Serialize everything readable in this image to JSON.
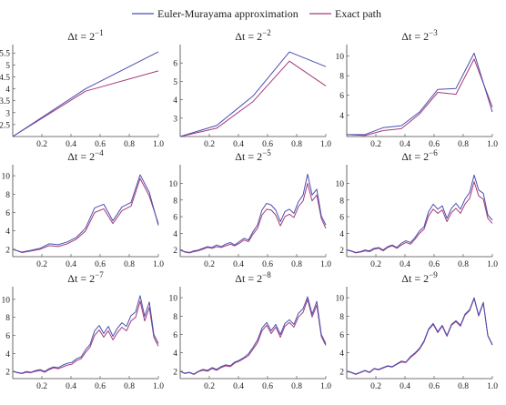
{
  "legend": {
    "items": [
      {
        "label": "Euler-Murayama approximation",
        "color": "#4b4fb0"
      },
      {
        "label": "Exact path",
        "color": "#a43a78"
      }
    ]
  },
  "chart_data": [
    {
      "type": "line",
      "title_base": "Δt = 2",
      "title_exp": "−1",
      "xlim": [
        0,
        1
      ],
      "ylim": [
        2.0,
        5.7
      ],
      "xticks": [
        0.2,
        0.4,
        0.6,
        0.8,
        1.0
      ],
      "yticks": [
        2.5,
        3.0,
        3.5,
        4.0,
        4.5,
        5.0,
        5.5
      ],
      "series": [
        {
          "color": "#4b4fb0",
          "x": [
            0,
            0.5,
            1.0
          ],
          "y": [
            2.0,
            4.0,
            5.55
          ]
        },
        {
          "color": "#a43a78",
          "x": [
            0,
            0.5,
            1.0
          ],
          "y": [
            2.0,
            3.9,
            4.75
          ]
        }
      ]
    },
    {
      "type": "line",
      "title_base": "Δt = 2",
      "title_exp": "−2",
      "xlim": [
        0,
        1
      ],
      "ylim": [
        2.0,
        6.8
      ],
      "xticks": [
        0.2,
        0.4,
        0.6,
        0.8,
        1.0
      ],
      "yticks": [
        3,
        4,
        5,
        6
      ],
      "series": [
        {
          "color": "#4b4fb0",
          "x": [
            0,
            0.25,
            0.5,
            0.75,
            1.0
          ],
          "y": [
            2.0,
            2.6,
            4.2,
            6.6,
            5.8
          ]
        },
        {
          "color": "#a43a78",
          "x": [
            0,
            0.25,
            0.5,
            0.75,
            1.0
          ],
          "y": [
            2.0,
            2.45,
            3.9,
            6.1,
            4.75
          ]
        }
      ]
    },
    {
      "type": "line",
      "title_base": "Δt = 2",
      "title_exp": "−3",
      "xlim": [
        0,
        1
      ],
      "ylim": [
        1.8,
        10.8
      ],
      "xticks": [
        0.2,
        0.4,
        0.6,
        0.8,
        1.0
      ],
      "yticks": [
        4,
        6,
        8,
        10
      ],
      "series": [
        {
          "color": "#4b4fb0",
          "x": [
            0,
            0.125,
            0.25,
            0.375,
            0.5,
            0.625,
            0.75,
            0.875,
            1.0
          ],
          "y": [
            2.0,
            2.0,
            2.7,
            2.9,
            4.3,
            6.6,
            6.7,
            10.3,
            4.3
          ]
        },
        {
          "color": "#a43a78",
          "x": [
            0,
            0.125,
            0.25,
            0.375,
            0.5,
            0.625,
            0.75,
            0.875,
            1.0
          ],
          "y": [
            2.0,
            1.9,
            2.4,
            2.6,
            4.1,
            6.3,
            6.1,
            9.7,
            4.8
          ]
        }
      ]
    },
    {
      "type": "line",
      "title_base": "Δt = 2",
      "title_exp": "−4",
      "xlim": [
        0,
        1
      ],
      "ylim": [
        1.2,
        10.8
      ],
      "xticks": [
        0.2,
        0.4,
        0.6,
        0.8,
        1.0
      ],
      "yticks": [
        2,
        4,
        6,
        8,
        10
      ],
      "series": [
        {
          "color": "#4b4fb0",
          "x": [
            0,
            0.0625,
            0.125,
            0.1875,
            0.25,
            0.3125,
            0.375,
            0.4375,
            0.5,
            0.5625,
            0.625,
            0.6875,
            0.75,
            0.8125,
            0.875,
            0.9375,
            1.0
          ],
          "y": [
            2.0,
            1.7,
            1.9,
            2.1,
            2.6,
            2.5,
            2.8,
            3.3,
            4.3,
            6.5,
            6.9,
            5.1,
            6.6,
            7.1,
            10.1,
            8.2,
            4.6
          ]
        },
        {
          "color": "#a43a78",
          "x": [
            0,
            0.0625,
            0.125,
            0.1875,
            0.25,
            0.3125,
            0.375,
            0.4375,
            0.5,
            0.5625,
            0.625,
            0.6875,
            0.75,
            0.8125,
            0.875,
            0.9375,
            1.0
          ],
          "y": [
            2.0,
            1.65,
            1.8,
            2.0,
            2.4,
            2.3,
            2.6,
            3.1,
            4.0,
            6.0,
            6.4,
            4.8,
            6.2,
            6.7,
            9.7,
            7.8,
            4.8
          ]
        }
      ]
    },
    {
      "type": "line",
      "title_base": "Δt = 2",
      "title_exp": "−5",
      "xlim": [
        0,
        1
      ],
      "ylim": [
        1.2,
        11.8
      ],
      "xticks": [
        0.2,
        0.4,
        0.6,
        0.8,
        1.0
      ],
      "yticks": [
        2,
        4,
        6,
        8,
        10
      ],
      "series": [
        {
          "color": "#4b4fb0",
          "x": [
            0,
            0.031,
            0.062,
            0.094,
            0.125,
            0.156,
            0.188,
            0.219,
            0.25,
            0.281,
            0.312,
            0.344,
            0.375,
            0.406,
            0.438,
            0.469,
            0.5,
            0.531,
            0.562,
            0.594,
            0.625,
            0.656,
            0.688,
            0.719,
            0.75,
            0.781,
            0.812,
            0.844,
            0.875,
            0.906,
            0.938,
            0.969,
            1.0
          ],
          "y": [
            2.0,
            1.8,
            1.7,
            1.9,
            2.0,
            2.2,
            2.4,
            2.3,
            2.6,
            2.4,
            2.7,
            2.9,
            2.6,
            3.0,
            3.4,
            3.2,
            4.2,
            5.0,
            6.8,
            7.6,
            7.4,
            6.8,
            5.4,
            6.6,
            6.9,
            6.4,
            7.8,
            8.6,
            11.1,
            8.6,
            9.3,
            6.1,
            5.0
          ]
        },
        {
          "color": "#a43a78",
          "x": [
            0,
            0.031,
            0.062,
            0.094,
            0.125,
            0.156,
            0.188,
            0.219,
            0.25,
            0.281,
            0.312,
            0.344,
            0.375,
            0.406,
            0.438,
            0.469,
            0.5,
            0.531,
            0.562,
            0.594,
            0.625,
            0.656,
            0.688,
            0.719,
            0.75,
            0.781,
            0.812,
            0.844,
            0.875,
            0.906,
            0.938,
            0.969,
            1.0
          ],
          "y": [
            2.0,
            1.75,
            1.65,
            1.8,
            1.9,
            2.1,
            2.3,
            2.2,
            2.4,
            2.3,
            2.5,
            2.7,
            2.5,
            2.8,
            3.2,
            3.0,
            3.9,
            4.6,
            6.2,
            6.9,
            6.8,
            6.2,
            4.9,
            6.0,
            6.3,
            5.9,
            7.2,
            7.9,
            10.0,
            7.9,
            8.6,
            5.8,
            4.6
          ]
        }
      ]
    },
    {
      "type": "line",
      "title_base": "Δt = 2",
      "title_exp": "−6",
      "xlim": [
        0,
        1
      ],
      "ylim": [
        1.2,
        11.8
      ],
      "xticks": [
        0.2,
        0.4,
        0.6,
        0.8,
        1.0
      ],
      "yticks": [
        2,
        4,
        6,
        8,
        10
      ],
      "series": [
        {
          "color": "#4b4fb0",
          "x": [
            0,
            0.031,
            0.062,
            0.094,
            0.125,
            0.156,
            0.188,
            0.219,
            0.25,
            0.281,
            0.312,
            0.344,
            0.375,
            0.406,
            0.438,
            0.469,
            0.5,
            0.531,
            0.562,
            0.594,
            0.625,
            0.656,
            0.688,
            0.719,
            0.75,
            0.781,
            0.812,
            0.844,
            0.875,
            0.906,
            0.938,
            0.969,
            1.0
          ],
          "y": [
            2.0,
            1.9,
            1.7,
            1.8,
            2.0,
            1.9,
            2.2,
            2.3,
            2.0,
            2.4,
            2.6,
            2.3,
            2.8,
            3.1,
            2.9,
            3.5,
            4.3,
            4.8,
            6.6,
            7.5,
            6.9,
            7.3,
            5.8,
            7.0,
            7.6,
            6.9,
            8.1,
            8.9,
            11.0,
            9.2,
            8.8,
            6.2,
            5.6
          ]
        },
        {
          "color": "#a43a78",
          "x": [
            0,
            0.031,
            0.062,
            0.094,
            0.125,
            0.156,
            0.188,
            0.219,
            0.25,
            0.281,
            0.312,
            0.344,
            0.375,
            0.406,
            0.438,
            0.469,
            0.5,
            0.531,
            0.562,
            0.594,
            0.625,
            0.656,
            0.688,
            0.719,
            0.75,
            0.781,
            0.812,
            0.844,
            0.875,
            0.906,
            0.938,
            0.969,
            1.0
          ],
          "y": [
            2.0,
            1.85,
            1.65,
            1.75,
            1.9,
            1.8,
            2.1,
            2.2,
            1.9,
            2.3,
            2.5,
            2.2,
            2.6,
            2.9,
            2.7,
            3.3,
            4.0,
            4.5,
            6.1,
            6.9,
            6.4,
            6.8,
            5.4,
            6.5,
            7.0,
            6.4,
            7.5,
            8.2,
            10.2,
            8.5,
            8.1,
            5.8,
            5.2
          ]
        }
      ]
    },
    {
      "type": "line",
      "title_base": "Δt = 2",
      "title_exp": "−7",
      "xlim": [
        0,
        1
      ],
      "ylim": [
        1.2,
        11.0
      ],
      "xticks": [
        0.2,
        0.4,
        0.6,
        0.8,
        1.0
      ],
      "yticks": [
        2,
        4,
        6,
        8,
        10
      ],
      "series": [
        {
          "color": "#4b4fb0",
          "x": [
            0,
            0.031,
            0.062,
            0.094,
            0.125,
            0.156,
            0.188,
            0.219,
            0.25,
            0.281,
            0.312,
            0.344,
            0.375,
            0.406,
            0.438,
            0.469,
            0.5,
            0.531,
            0.562,
            0.594,
            0.625,
            0.656,
            0.688,
            0.719,
            0.75,
            0.781,
            0.812,
            0.844,
            0.875,
            0.906,
            0.938,
            0.969,
            1.0
          ],
          "y": [
            2.0,
            1.9,
            1.8,
            2.0,
            1.9,
            2.1,
            2.2,
            2.0,
            2.3,
            2.5,
            2.4,
            2.7,
            2.9,
            3.0,
            3.4,
            3.6,
            4.4,
            5.0,
            6.5,
            7.1,
            6.2,
            7.0,
            5.9,
            6.8,
            7.4,
            7.0,
            8.2,
            8.6,
            10.4,
            8.1,
            9.7,
            6.1,
            5.1
          ]
        },
        {
          "color": "#a43a78",
          "x": [
            0,
            0.031,
            0.062,
            0.094,
            0.125,
            0.156,
            0.188,
            0.219,
            0.25,
            0.281,
            0.312,
            0.344,
            0.375,
            0.406,
            0.438,
            0.469,
            0.5,
            0.531,
            0.562,
            0.594,
            0.625,
            0.656,
            0.688,
            0.719,
            0.75,
            0.781,
            0.812,
            0.844,
            0.875,
            0.906,
            0.938,
            0.969,
            1.0
          ],
          "y": [
            2.0,
            1.85,
            1.75,
            1.9,
            1.85,
            2.0,
            2.1,
            1.9,
            2.2,
            2.4,
            2.3,
            2.5,
            2.7,
            2.8,
            3.2,
            3.4,
            4.1,
            4.7,
            6.0,
            6.6,
            5.8,
            6.5,
            5.5,
            6.3,
            6.9,
            6.5,
            7.6,
            8.0,
            9.8,
            7.6,
            9.1,
            5.8,
            4.8
          ]
        }
      ]
    },
    {
      "type": "line",
      "title_base": "Δt = 2",
      "title_exp": "−8",
      "xlim": [
        0,
        1
      ],
      "ylim": [
        1.2,
        10.8
      ],
      "xticks": [
        0.2,
        0.4,
        0.6,
        0.8,
        1.0
      ],
      "yticks": [
        2,
        4,
        6,
        8,
        10
      ],
      "series": [
        {
          "color": "#4b4fb0",
          "x": [
            0,
            0.031,
            0.062,
            0.094,
            0.125,
            0.156,
            0.188,
            0.219,
            0.25,
            0.281,
            0.312,
            0.344,
            0.375,
            0.406,
            0.438,
            0.469,
            0.5,
            0.531,
            0.562,
            0.594,
            0.625,
            0.656,
            0.688,
            0.719,
            0.75,
            0.781,
            0.812,
            0.844,
            0.875,
            0.906,
            0.938,
            0.969,
            1.0
          ],
          "y": [
            2.0,
            1.8,
            1.9,
            1.7,
            2.0,
            2.2,
            2.1,
            2.4,
            2.2,
            2.5,
            2.7,
            2.6,
            3.0,
            3.2,
            3.5,
            3.9,
            4.6,
            5.4,
            6.7,
            7.3,
            6.4,
            7.1,
            6.0,
            7.2,
            7.6,
            7.1,
            8.3,
            8.8,
            10.1,
            8.2,
            9.6,
            6.0,
            5.0
          ]
        },
        {
          "color": "#a43a78",
          "x": [
            0,
            0.031,
            0.062,
            0.094,
            0.125,
            0.156,
            0.188,
            0.219,
            0.25,
            0.281,
            0.312,
            0.344,
            0.375,
            0.406,
            0.438,
            0.469,
            0.5,
            0.531,
            0.562,
            0.594,
            0.625,
            0.656,
            0.688,
            0.719,
            0.75,
            0.781,
            0.812,
            0.844,
            0.875,
            0.906,
            0.938,
            0.969,
            1.0
          ],
          "y": [
            2.0,
            1.75,
            1.85,
            1.65,
            1.95,
            2.1,
            2.0,
            2.3,
            2.1,
            2.4,
            2.6,
            2.5,
            2.9,
            3.1,
            3.4,
            3.7,
            4.4,
            5.1,
            6.4,
            7.0,
            6.1,
            6.8,
            5.7,
            6.9,
            7.3,
            6.8,
            7.9,
            8.4,
            9.8,
            7.9,
            9.2,
            5.8,
            4.8
          ]
        }
      ]
    },
    {
      "type": "line",
      "title_base": "Δt = 2",
      "title_exp": "−9",
      "xlim": [
        0,
        1
      ],
      "ylim": [
        1.2,
        10.8
      ],
      "xticks": [
        0.2,
        0.4,
        0.6,
        0.8,
        1.0
      ],
      "yticks": [
        2,
        4,
        6,
        8,
        10
      ],
      "series": [
        {
          "color": "#4b4fb0",
          "x": [
            0,
            0.031,
            0.062,
            0.094,
            0.125,
            0.156,
            0.188,
            0.219,
            0.25,
            0.281,
            0.312,
            0.344,
            0.375,
            0.406,
            0.438,
            0.469,
            0.5,
            0.531,
            0.562,
            0.594,
            0.625,
            0.656,
            0.688,
            0.719,
            0.75,
            0.781,
            0.812,
            0.844,
            0.875,
            0.906,
            0.938,
            0.969,
            1.0
          ],
          "y": [
            2.0,
            1.9,
            1.7,
            1.9,
            2.1,
            1.9,
            2.3,
            2.2,
            2.4,
            2.6,
            2.5,
            2.8,
            3.1,
            3.0,
            3.6,
            4.0,
            4.5,
            5.3,
            6.6,
            7.2,
            6.3,
            7.0,
            5.9,
            7.1,
            7.5,
            7.0,
            8.2,
            8.7,
            10.0,
            8.1,
            9.5,
            5.9,
            4.9
          ]
        },
        {
          "color": "#a43a78",
          "x": [
            0,
            0.031,
            0.062,
            0.094,
            0.125,
            0.156,
            0.188,
            0.219,
            0.25,
            0.281,
            0.312,
            0.344,
            0.375,
            0.406,
            0.438,
            0.469,
            0.5,
            0.531,
            0.562,
            0.594,
            0.625,
            0.656,
            0.688,
            0.719,
            0.75,
            0.781,
            0.812,
            0.844,
            0.875,
            0.906,
            0.938,
            0.969,
            1.0
          ],
          "y": [
            2.0,
            1.85,
            1.65,
            1.85,
            2.05,
            1.85,
            2.25,
            2.15,
            2.35,
            2.55,
            2.45,
            2.75,
            3.0,
            2.95,
            3.5,
            3.9,
            4.4,
            5.2,
            6.5,
            7.1,
            6.2,
            6.9,
            5.8,
            7.0,
            7.4,
            6.9,
            8.1,
            8.6,
            9.9,
            8.0,
            9.4,
            5.85,
            4.85
          ]
        }
      ]
    }
  ]
}
